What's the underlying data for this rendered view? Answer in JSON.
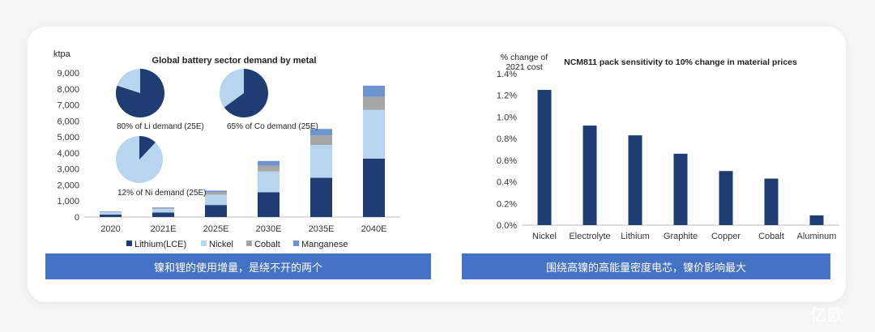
{
  "left": {
    "caption": "镍和锂的使用增量，是绕不开的两个",
    "chart_data": {
      "type": "bar",
      "stacked": true,
      "title": "Global battery sector demand by metal",
      "ylabel": "ktpa",
      "ylim": [
        0,
        9000
      ],
      "yticks": [
        0,
        1000,
        2000,
        3000,
        4000,
        5000,
        6000,
        7000,
        8000,
        9000
      ],
      "ytick_labels": [
        "0",
        "1,000",
        "2,000",
        "3,000",
        "4,000",
        "5,000",
        "6,000",
        "7,000",
        "8,000",
        "9,000"
      ],
      "categories": [
        "2020",
        "2021E",
        "2025E",
        "2030E",
        "2035E",
        "2040E"
      ],
      "series": [
        {
          "name": "Lithium(LCE)",
          "color": "#1f3d73",
          "values": [
            150,
            280,
            750,
            1550,
            2450,
            3650
          ]
        },
        {
          "name": "Nickel",
          "color": "#b8d5f0",
          "values": [
            150,
            230,
            650,
            1300,
            2050,
            3050
          ]
        },
        {
          "name": "Cobalt",
          "color": "#a6a6a6",
          "values": [
            30,
            50,
            150,
            350,
            600,
            800
          ]
        },
        {
          "name": "Manganese",
          "color": "#6f93cf",
          "values": [
            20,
            40,
            100,
            300,
            400,
            700
          ]
        }
      ],
      "legend_position": "bottom",
      "grid": false
    },
    "pies": [
      {
        "label": "80% of Li demand (25E)",
        "share": 0.8,
        "main_color": "#1f3d73",
        "rest_color": "#b8d5f0"
      },
      {
        "label": "65% of Co demand (25E)",
        "share": 0.65,
        "main_color": "#1f3d73",
        "rest_color": "#b8d5f0"
      },
      {
        "label": "12% of Ni demand (25E)",
        "share": 0.12,
        "main_color": "#1f3d73",
        "rest_color": "#b8d5f0"
      }
    ]
  },
  "right": {
    "caption": "围绕高镍的高能量密度电芯，镍价影响最大",
    "chart_data": {
      "type": "bar",
      "title": "NCM811 pack sensitivity to 10% change in material prices",
      "ylabel": "% change of 2021 cost",
      "ylabel_lines": [
        "% change of",
        "2021 cost"
      ],
      "ylim": [
        0,
        1.4
      ],
      "yticks": [
        0,
        0.2,
        0.4,
        0.6,
        0.8,
        1.0,
        1.2,
        1.4
      ],
      "ytick_labels": [
        "0.0%",
        "0.2%",
        "0.4%",
        "0.6%",
        "0.8%",
        "1.0%",
        "1.2%",
        "1.4%"
      ],
      "categories": [
        "Nickel",
        "Electrolyte",
        "Lithium",
        "Graphite",
        "Copper",
        "Cobalt",
        "Aluminum"
      ],
      "values": [
        1.25,
        0.92,
        0.83,
        0.66,
        0.5,
        0.43,
        0.09
      ],
      "color": "#1f3d73",
      "grid": false
    }
  },
  "watermark": "亿欧"
}
